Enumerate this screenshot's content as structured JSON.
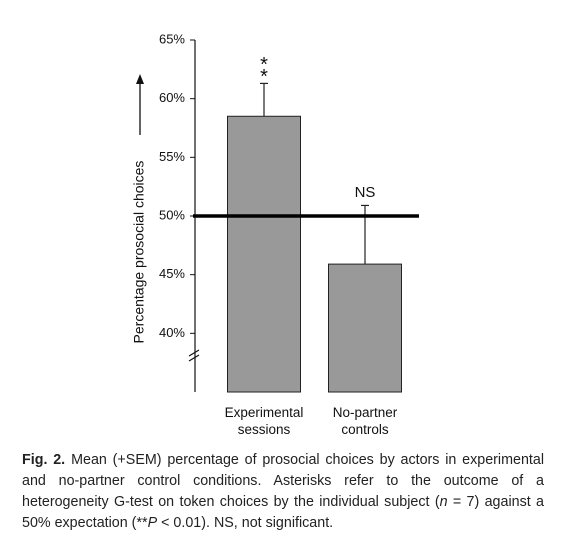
{
  "chart_data": {
    "type": "bar",
    "y_label": "Percentage prosocial choices",
    "categories": [
      "Experimental sessions",
      "No-partner controls"
    ],
    "values": [
      58.5,
      45.9
    ],
    "errors": [
      2.8,
      5.0
    ],
    "annotations": [
      "**",
      "NS"
    ],
    "color": "#999999",
    "reference_line": 50,
    "ylim": [
      35,
      65
    ],
    "yticks": [
      {
        "value": 40,
        "label": "40%"
      },
      {
        "value": 45,
        "label": "45%"
      },
      {
        "value": 50,
        "label": "50%"
      },
      {
        "value": 55,
        "label": "55%"
      },
      {
        "value": 60,
        "label": "60%"
      },
      {
        "value": 65,
        "label": "65%"
      }
    ]
  },
  "caption": {
    "label": "Fig. 2.",
    "parts": [
      "Mean (+SEM) percentage of prosocial choices by actors in experimental and no-partner control conditions. Asterisks refer to the outcome of a heterogeneity G-test on token choices by the individual subject (",
      "n",
      " = 7) against a 50% expectation (**",
      "P",
      " < 0.01). NS, not significant."
    ]
  }
}
